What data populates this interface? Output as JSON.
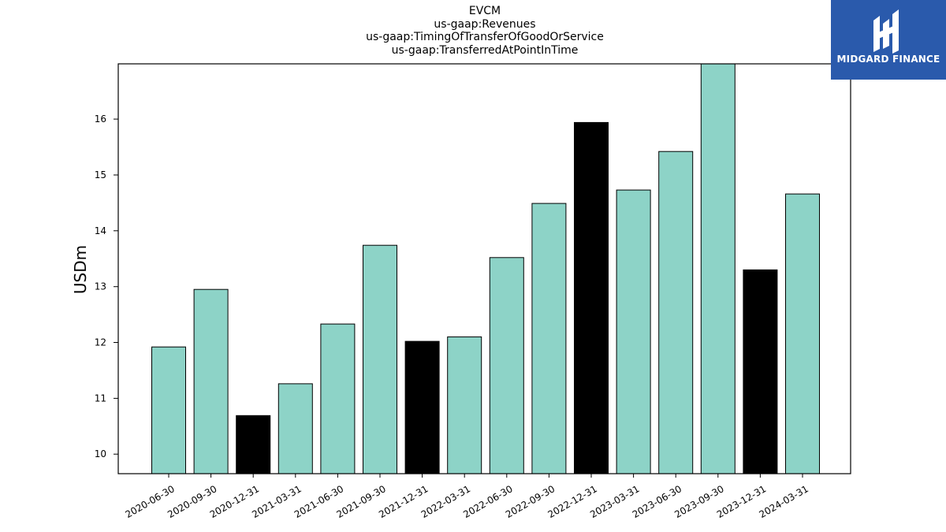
{
  "chart_data": {
    "type": "bar",
    "title_lines": [
      "EVCM",
      "us-gaap:Revenues",
      "us-gaap:TimingOfTransferOfGoodOrService",
      "us-gaap:TransferredAtPointInTime"
    ],
    "xlabel": "",
    "ylabel": "USDm",
    "categories": [
      "2020-06-30",
      "2020-09-30",
      "2020-12-31",
      "2021-03-31",
      "2021-06-30",
      "2021-09-30",
      "2021-12-31",
      "2022-03-31",
      "2022-06-30",
      "2022-09-30",
      "2022-12-31",
      "2023-03-31",
      "2023-06-30",
      "2023-09-30",
      "2023-12-31",
      "2024-03-31"
    ],
    "values": [
      11.92,
      12.95,
      10.69,
      11.26,
      12.33,
      13.74,
      12.02,
      12.1,
      13.52,
      14.49,
      15.94,
      14.73,
      15.42,
      16.99,
      13.3,
      14.66
    ],
    "highlight": [
      false,
      false,
      true,
      false,
      false,
      false,
      true,
      false,
      false,
      false,
      true,
      false,
      false,
      false,
      true,
      false
    ],
    "ylim": [
      9.65,
      16.99
    ],
    "yticks": [
      10,
      11,
      12,
      13,
      14,
      15,
      16
    ],
    "colors": {
      "bar": "#8dd3c7",
      "bar_highlight": "#000000",
      "edge": "#000000"
    },
    "grid": false,
    "legend": "none"
  },
  "logo": {
    "text": "MIDGARD FINANCE",
    "icon": "midgard-logo-icon",
    "background": "#2a5aac"
  }
}
